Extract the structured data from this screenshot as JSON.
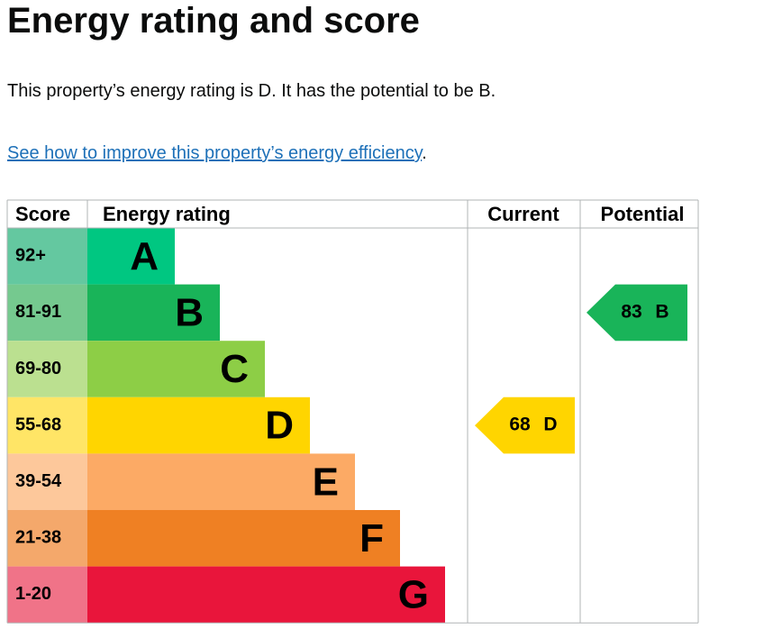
{
  "header": {
    "title": "Energy rating and score"
  },
  "summary": "This property’s energy rating is D. It has the potential to be B.",
  "link": {
    "text": "See how to improve this property’s energy efficiency",
    "suffix": "."
  },
  "table": {
    "columns": [
      "Score",
      "Energy rating",
      "Current",
      "Potential"
    ],
    "rows": [
      {
        "score": "92+",
        "letter": "A",
        "color": "#00c781",
        "score_color": "#64c8a0"
      },
      {
        "score": "81-91",
        "letter": "B",
        "color": "#19b459",
        "score_color": "#75c98f"
      },
      {
        "score": "69-80",
        "letter": "C",
        "color": "#8dce46",
        "score_color": "#bbe090"
      },
      {
        "score": "55-68",
        "letter": "D",
        "color": "#ffd500",
        "score_color": "#ffe566"
      },
      {
        "score": "39-54",
        "letter": "E",
        "color": "#fcaa65",
        "score_color": "#fdc89b"
      },
      {
        "score": "21-38",
        "letter": "F",
        "color": "#ef8023",
        "score_color": "#f4a86b"
      },
      {
        "score": "1-20",
        "letter": "G",
        "color": "#e9153b",
        "score_color": "#f07388"
      }
    ],
    "current": {
      "value": 68,
      "letter": "D"
    },
    "potential": {
      "value": 83,
      "letter": "B"
    }
  }
}
